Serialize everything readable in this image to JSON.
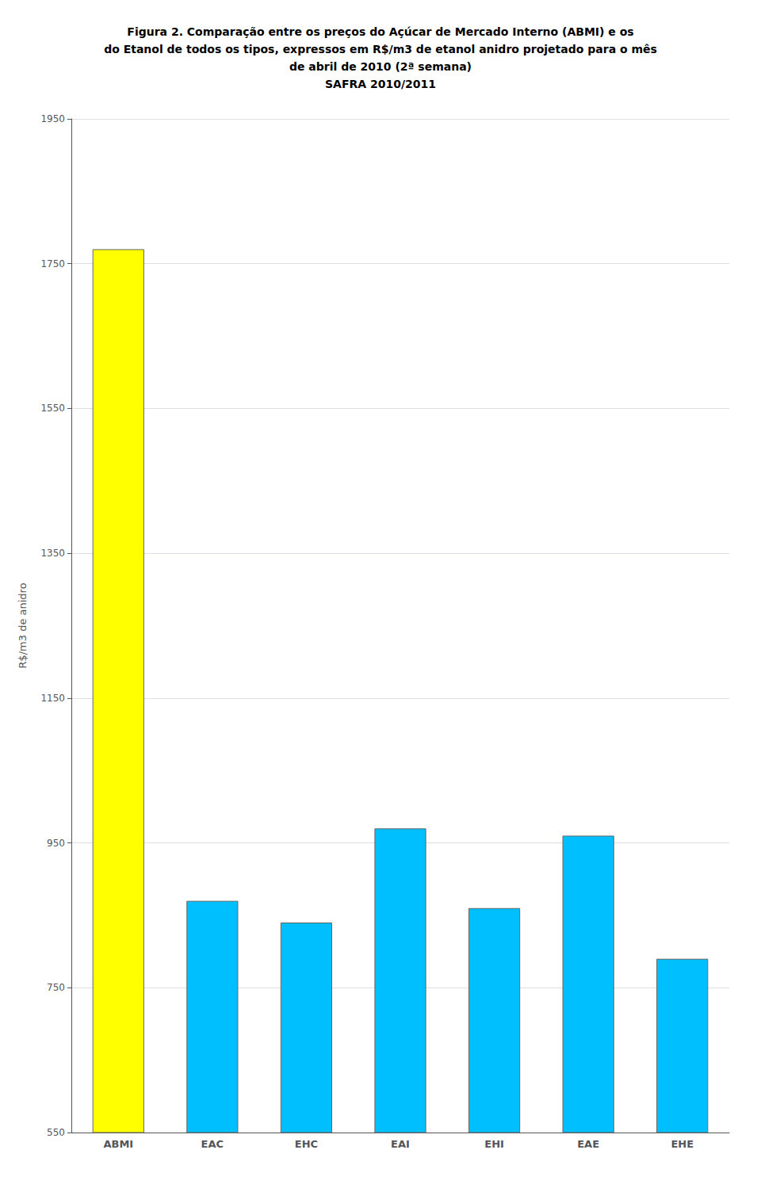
{
  "chart_data": {
    "type": "bar",
    "title": "Figura 2. Comparação entre os preços do Açúcar de Mercado Interno (ABMI) e os\ndo Etanol de todos os tipos, expressos em R$/m3 de etanol anidro projetado para o mês\nde abril de 2010 (2ª semana)\nSAFRA 2010/2011",
    "categories": [
      "ABMI",
      "EAC",
      "EHC",
      "EAI",
      "EHI",
      "EAE",
      "EHE"
    ],
    "values": [
      1770,
      870,
      840,
      970,
      860,
      960,
      790
    ],
    "colors": [
      "#FFFF00",
      "#00BFFF",
      "#00BFFF",
      "#00BFFF",
      "#00BFFF",
      "#00BFFF",
      "#00BFFF"
    ],
    "ylabel": "R$/m3 de anidro",
    "ylim": [
      550,
      1950
    ],
    "yticks": [
      550,
      750,
      950,
      1150,
      1350,
      1550,
      1750,
      1950
    ],
    "grid": true
  }
}
